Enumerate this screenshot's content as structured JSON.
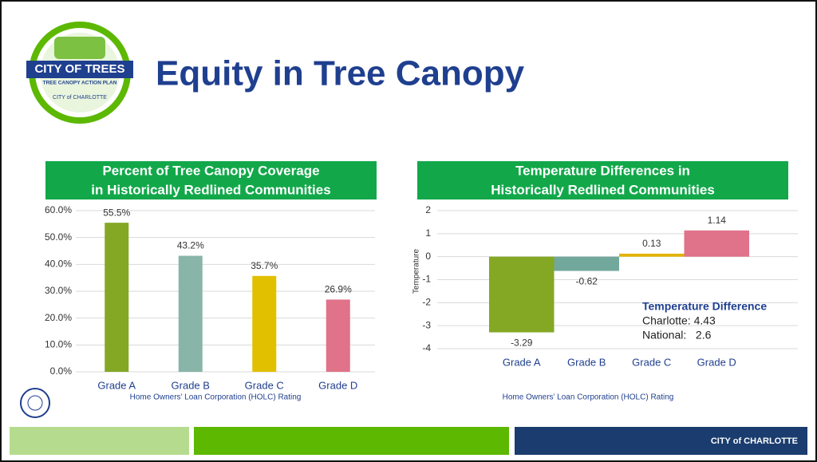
{
  "header": {
    "title": "Equity in Tree Canopy"
  },
  "logo": {
    "title": "CITY OF TREES",
    "subtitle": "TREE CANOPY ACTION PLAN",
    "city": "CITY of CHARLOTTE"
  },
  "footer": {
    "brand": "CITY of CHARLOTTE"
  },
  "chart_data": [
    {
      "type": "bar",
      "title": [
        "Percent of Tree Canopy Coverage",
        "in Historically Redlined Communities"
      ],
      "x_label": "Home Owners’ Loan Corporation (HOLC) Rating",
      "categories": [
        "Grade A",
        "Grade B",
        "Grade C",
        "Grade D"
      ],
      "values": [
        55.5,
        43.2,
        35.7,
        26.9
      ],
      "value_labels": [
        "55.5%",
        "43.2%",
        "35.7%",
        "26.9%"
      ],
      "colors": [
        "#84a824",
        "#88b5a8",
        "#e1c000",
        "#e0728a"
      ],
      "ylim": [
        0,
        60
      ],
      "yticks": [
        {
          "value": 0,
          "label": "0.0%"
        },
        {
          "value": 10,
          "label": "10.0%"
        },
        {
          "value": 20,
          "label": "20.0%"
        },
        {
          "value": 30,
          "label": "30.0%"
        },
        {
          "value": 40,
          "label": "40.0%"
        },
        {
          "value": 50,
          "label": "50.0%"
        },
        {
          "value": 60,
          "label": "60.0%"
        }
      ],
      "grid": true
    },
    {
      "type": "bar",
      "title": [
        "Temperature Differences in",
        "Historically Redlined Communities"
      ],
      "x_label": "Home Owners’ Loan Corporation (HOLC) Rating",
      "y_label": "Temperature",
      "categories": [
        "Grade A",
        "Grade B",
        "Grade C",
        "Grade D"
      ],
      "values": [
        -3.29,
        -0.62,
        0.13,
        1.14
      ],
      "colors": [
        "#84a824",
        "#72a89c",
        "#e1b400",
        "#e0728a"
      ],
      "ylim": [
        -4,
        2
      ],
      "yticks": [
        -4,
        -3,
        -2,
        -1,
        0,
        1,
        2
      ],
      "grid": true,
      "annotations": [
        "Temperature Difference",
        "Charlotte: 4.43",
        "National:   2.6"
      ]
    }
  ]
}
